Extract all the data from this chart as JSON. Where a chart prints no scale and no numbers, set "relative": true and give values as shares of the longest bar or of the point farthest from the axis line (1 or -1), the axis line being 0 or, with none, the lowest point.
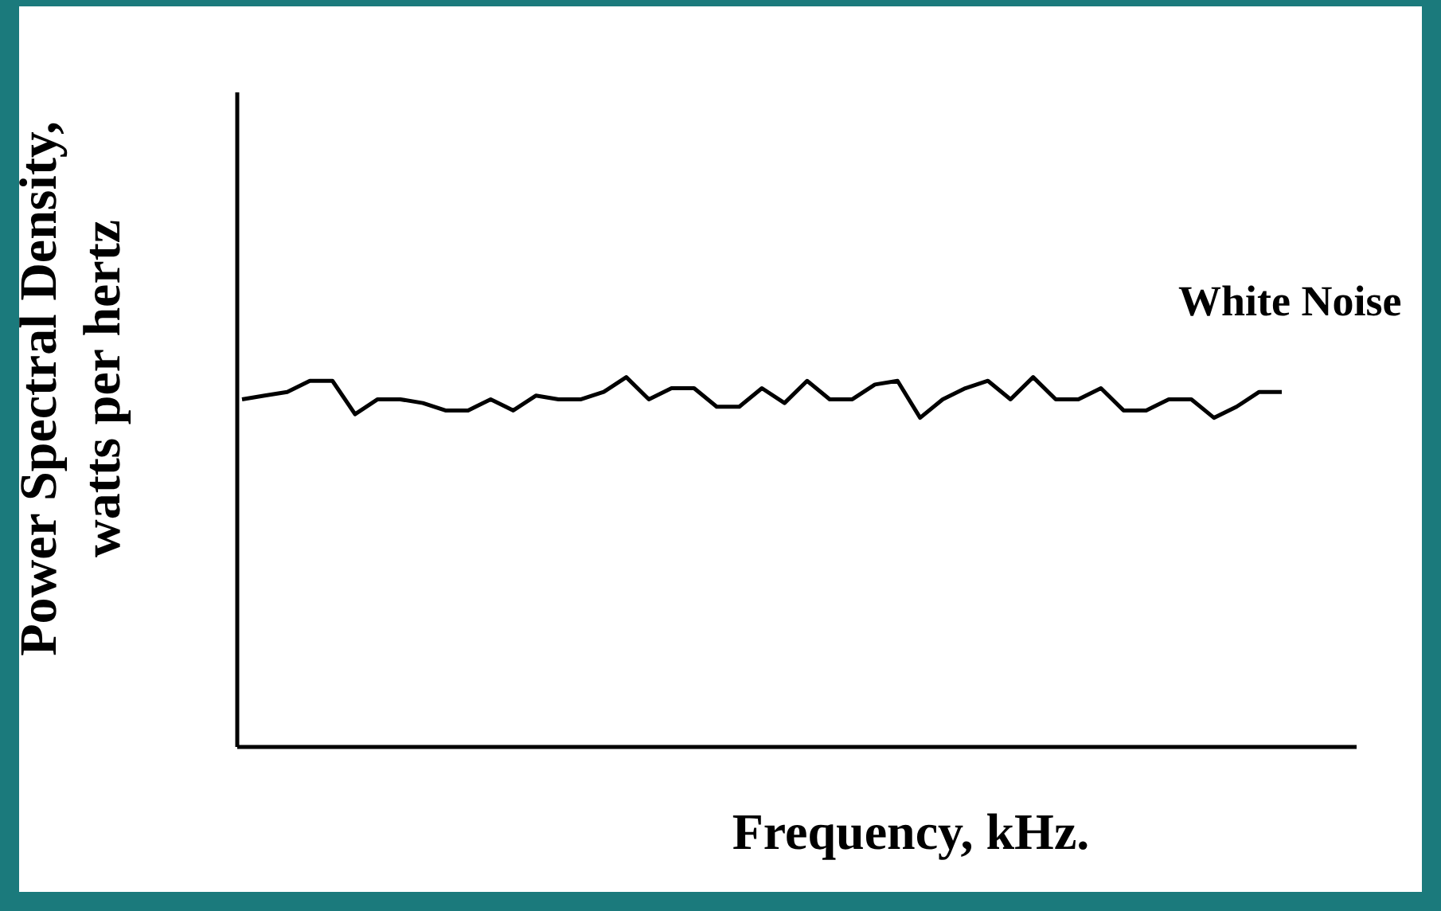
{
  "chart_data": {
    "type": "line",
    "relative": true,
    "xlabel": "Frequency, kHz.",
    "ylabel": "Power Spectral Density, watts per hertz",
    "legend": false,
    "grid": false,
    "marker": "none",
    "line_style": "solid",
    "categories": [
      null,
      null,
      null,
      null,
      null,
      null,
      null,
      null,
      null,
      null,
      null,
      null,
      null,
      null,
      null,
      null,
      null,
      null,
      null,
      null,
      null,
      null,
      null,
      null,
      null,
      null,
      null,
      null,
      null,
      null,
      null,
      null,
      null,
      null,
      null,
      null,
      null,
      null,
      null,
      null,
      null,
      null,
      null,
      null,
      null,
      null,
      null
    ],
    "series": [
      {
        "name": "White Noise",
        "color": "#000000",
        "values": [
          0.94,
          0.95,
          0.96,
          0.99,
          0.99,
          0.9,
          0.94,
          0.94,
          0.93,
          0.91,
          0.91,
          0.94,
          0.91,
          0.95,
          0.94,
          0.94,
          0.96,
          1,
          0.94,
          0.97,
          0.97,
          0.92,
          0.92,
          0.97,
          0.93,
          0.99,
          0.94,
          0.94,
          0.98,
          0.99,
          0.89,
          0.94,
          0.97,
          0.99,
          0.94,
          1,
          0.94,
          0.94,
          0.97,
          0.91,
          0.91,
          0.94,
          0.94,
          0.89,
          0.92,
          0.96,
          0.96
        ]
      }
    ]
  }
}
